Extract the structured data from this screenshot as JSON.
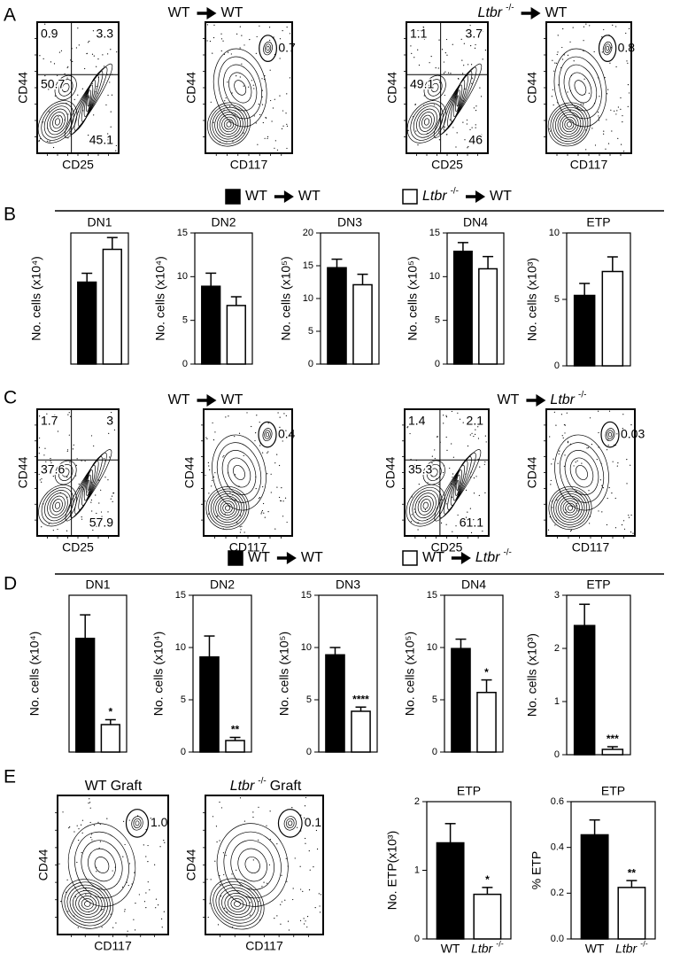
{
  "panel_labels": [
    "A",
    "B",
    "C",
    "D",
    "E"
  ],
  "flow_headers": [
    {
      "segments": [
        {
          "text": "WT"
        },
        {
          "arrow": true
        },
        {
          "text": "WT"
        }
      ]
    },
    {
      "segments": [
        {
          "text": "Ltbr",
          "style": "italic"
        },
        {
          "text": "-/-",
          "style": "sup"
        },
        {
          "arrow": true
        },
        {
          "text": "WT"
        }
      ]
    },
    {
      "segments": [
        {
          "text": "WT"
        },
        {
          "arrow": true
        },
        {
          "text": "WT"
        }
      ]
    },
    {
      "segments": [
        {
          "text": "WT"
        },
        {
          "arrow": true
        },
        {
          "text": "Ltbr",
          "style": "italic"
        },
        {
          "text": "-/-",
          "style": "sup"
        }
      ]
    },
    {
      "segments": [
        {
          "text": "WT Graft"
        }
      ]
    },
    {
      "segments": [
        {
          "text": "Ltbr",
          "style": "italic"
        },
        {
          "text": "-/-",
          "style": "sup"
        },
        {
          "text": "Graft"
        }
      ]
    }
  ],
  "flow_plots": [
    {
      "kind": "quadrant",
      "x_label": "CD25",
      "y_label": "CD44",
      "values": [
        "0.9",
        "3.3",
        "50.7",
        "45.1"
      ]
    },
    {
      "kind": "gate",
      "x_label": "CD117",
      "y_label": "CD44",
      "values": [
        "0.7"
      ]
    },
    {
      "kind": "quadrant",
      "x_label": "CD25",
      "y_label": "CD44",
      "values": [
        "1.1",
        "3.7",
        "49.1",
        "46"
      ]
    },
    {
      "kind": "gate",
      "x_label": "CD117",
      "y_label": "CD44",
      "values": [
        "0.8"
      ]
    },
    {
      "kind": "quadrant",
      "x_label": "CD25",
      "y_label": "CD44",
      "values": [
        "1.7",
        "3",
        "37.6",
        "57.9"
      ]
    },
    {
      "kind": "gate",
      "x_label": "CD117",
      "y_label": "CD44",
      "values": [
        "0.4"
      ]
    },
    {
      "kind": "quadrant",
      "x_label": "CD25",
      "y_label": "CD44",
      "values": [
        "1.4",
        "2.1",
        "35.3",
        "61.1"
      ]
    },
    {
      "kind": "gate",
      "x_label": "CD117",
      "y_label": "CD44",
      "values": [
        "0.03"
      ]
    },
    {
      "kind": "gate",
      "x_label": "CD117",
      "y_label": "CD44",
      "values": [
        "1.0"
      ]
    },
    {
      "kind": "gate",
      "x_label": "CD117",
      "y_label": "CD44",
      "values": [
        "0.1"
      ]
    }
  ],
  "legends": [
    {
      "entries": [
        {
          "color": "#000000",
          "segments": [
            {
              "text": "WT"
            },
            {
              "arrow": true
            },
            {
              "text": "WT"
            }
          ]
        },
        {
          "color": "#ffffff",
          "segments": [
            {
              "text": "Ltbr",
              "style": "italic"
            },
            {
              "text": "-/-",
              "style": "sup"
            },
            {
              "arrow": true
            },
            {
              "text": "WT"
            }
          ]
        }
      ]
    },
    {
      "entries": [
        {
          "color": "#000000",
          "segments": [
            {
              "text": "WT"
            },
            {
              "arrow": true
            },
            {
              "text": "WT"
            }
          ]
        },
        {
          "color": "#ffffff",
          "segments": [
            {
              "text": "WT"
            },
            {
              "arrow": true
            },
            {
              "text": "Ltbr",
              "style": "italic"
            },
            {
              "text": "-/-",
              "style": "sup"
            }
          ]
        }
      ]
    }
  ],
  "chart_data": [
    {
      "type": "bar",
      "title": "DN1",
      "y_label": "No. cells (x10⁴)",
      "ylim": [
        0,
        4
      ],
      "values": [
        2.5,
        3.5
      ],
      "errors": [
        0.27,
        0.36
      ],
      "colors": [
        "#000000",
        "#ffffff"
      ]
    },
    {
      "type": "bar",
      "title": "DN2",
      "y_label": "No. cells (x10⁴)",
      "ylim": [
        0,
        15
      ],
      "yticks": [
        0,
        5,
        10,
        15
      ],
      "values": [
        8.9,
        6.7
      ],
      "errors": [
        1.5,
        1.0
      ],
      "colors": [
        "#000000",
        "#ffffff"
      ]
    },
    {
      "type": "bar",
      "title": "DN3",
      "y_label": "No. cells (x10⁵)",
      "ylim": [
        0,
        20
      ],
      "yticks": [
        0,
        5,
        10,
        15,
        20
      ],
      "values": [
        14.7,
        12.1
      ],
      "errors": [
        1.3,
        1.6
      ],
      "colors": [
        "#000000",
        "#ffffff"
      ]
    },
    {
      "type": "bar",
      "title": "DN4",
      "y_label": "No. cells (x10⁵)",
      "ylim": [
        0,
        15
      ],
      "yticks": [
        0,
        5,
        10,
        15
      ],
      "values": [
        12.9,
        10.9
      ],
      "errors": [
        1.0,
        1.4
      ],
      "colors": [
        "#000000",
        "#ffffff"
      ]
    },
    {
      "type": "bar",
      "title": "ETP",
      "y_label": "No. cells (x10³)",
      "ylim": [
        0,
        10
      ],
      "yticks": [
        0,
        5,
        10
      ],
      "values": [
        5.3,
        7.1
      ],
      "errors": [
        0.9,
        1.1
      ],
      "colors": [
        "#000000",
        "#ffffff"
      ]
    },
    {
      "type": "bar",
      "title": "DN1",
      "y_label": "No. cells (x10⁴)",
      "ylim": [
        0,
        8
      ],
      "values": [
        5.8,
        1.4
      ],
      "errors": [
        1.2,
        0.25
      ],
      "annotation": "*",
      "colors": [
        "#000000",
        "#ffffff"
      ]
    },
    {
      "type": "bar",
      "title": "DN2",
      "y_label": "No. cells (x10⁴)",
      "ylim": [
        0,
        15
      ],
      "yticks": [
        0,
        5,
        10,
        15
      ],
      "values": [
        9.1,
        1.1
      ],
      "errors": [
        2.0,
        0.3
      ],
      "annotation": "**",
      "colors": [
        "#000000",
        "#ffffff"
      ]
    },
    {
      "type": "bar",
      "title": "DN3",
      "y_label": "No. cells (x10⁵)",
      "ylim": [
        0,
        15
      ],
      "yticks": [
        0,
        5,
        10,
        15
      ],
      "values": [
        9.3,
        3.9
      ],
      "errors": [
        0.7,
        0.4
      ],
      "annotation": "****",
      "colors": [
        "#000000",
        "#ffffff"
      ]
    },
    {
      "type": "bar",
      "title": "DN4",
      "y_label": "No. cells (x10⁵)",
      "ylim": [
        0,
        15
      ],
      "yticks": [
        0,
        5,
        10,
        15
      ],
      "values": [
        9.9,
        5.7
      ],
      "errors": [
        0.9,
        1.2
      ],
      "annotation": "*",
      "colors": [
        "#000000",
        "#ffffff"
      ]
    },
    {
      "type": "bar",
      "title": "ETP",
      "y_label": "No. cells (x10³)",
      "ylim": [
        0,
        3
      ],
      "yticks": [
        0,
        1,
        2,
        3
      ],
      "values": [
        2.43,
        0.1
      ],
      "errors": [
        0.4,
        0.05
      ],
      "annotation": "***",
      "colors": [
        "#000000",
        "#ffffff"
      ]
    },
    {
      "type": "bar",
      "title": "ETP",
      "y_label": "No. ETP(x10³)",
      "ylim": [
        0,
        2
      ],
      "yticks": [
        0,
        1,
        2
      ],
      "values": [
        1.4,
        0.65
      ],
      "errors": [
        0.28,
        0.1
      ],
      "annotation": "*",
      "colors": [
        "#000000",
        "#ffffff"
      ],
      "categories": [
        [
          {
            "text": "WT"
          }
        ],
        [
          {
            "text": "Ltbr",
            "style": "italic"
          },
          {
            "text": "-/-",
            "style": "sup"
          }
        ]
      ]
    },
    {
      "type": "bar",
      "title": "ETP",
      "y_label": "% ETP",
      "ylim": [
        0,
        0.6
      ],
      "yticks": [
        {
          "value": 0,
          "label": "0.0"
        },
        0.2,
        0.4,
        0.6
      ],
      "values": [
        0.455,
        0.225
      ],
      "errors": [
        0.065,
        0.03
      ],
      "annotation": "**",
      "colors": [
        "#000000",
        "#ffffff"
      ],
      "categories": [
        [
          {
            "text": "WT"
          }
        ],
        [
          {
            "text": "Ltbr",
            "style": "italic"
          },
          {
            "text": "-/-",
            "style": "sup"
          }
        ]
      ]
    }
  ]
}
